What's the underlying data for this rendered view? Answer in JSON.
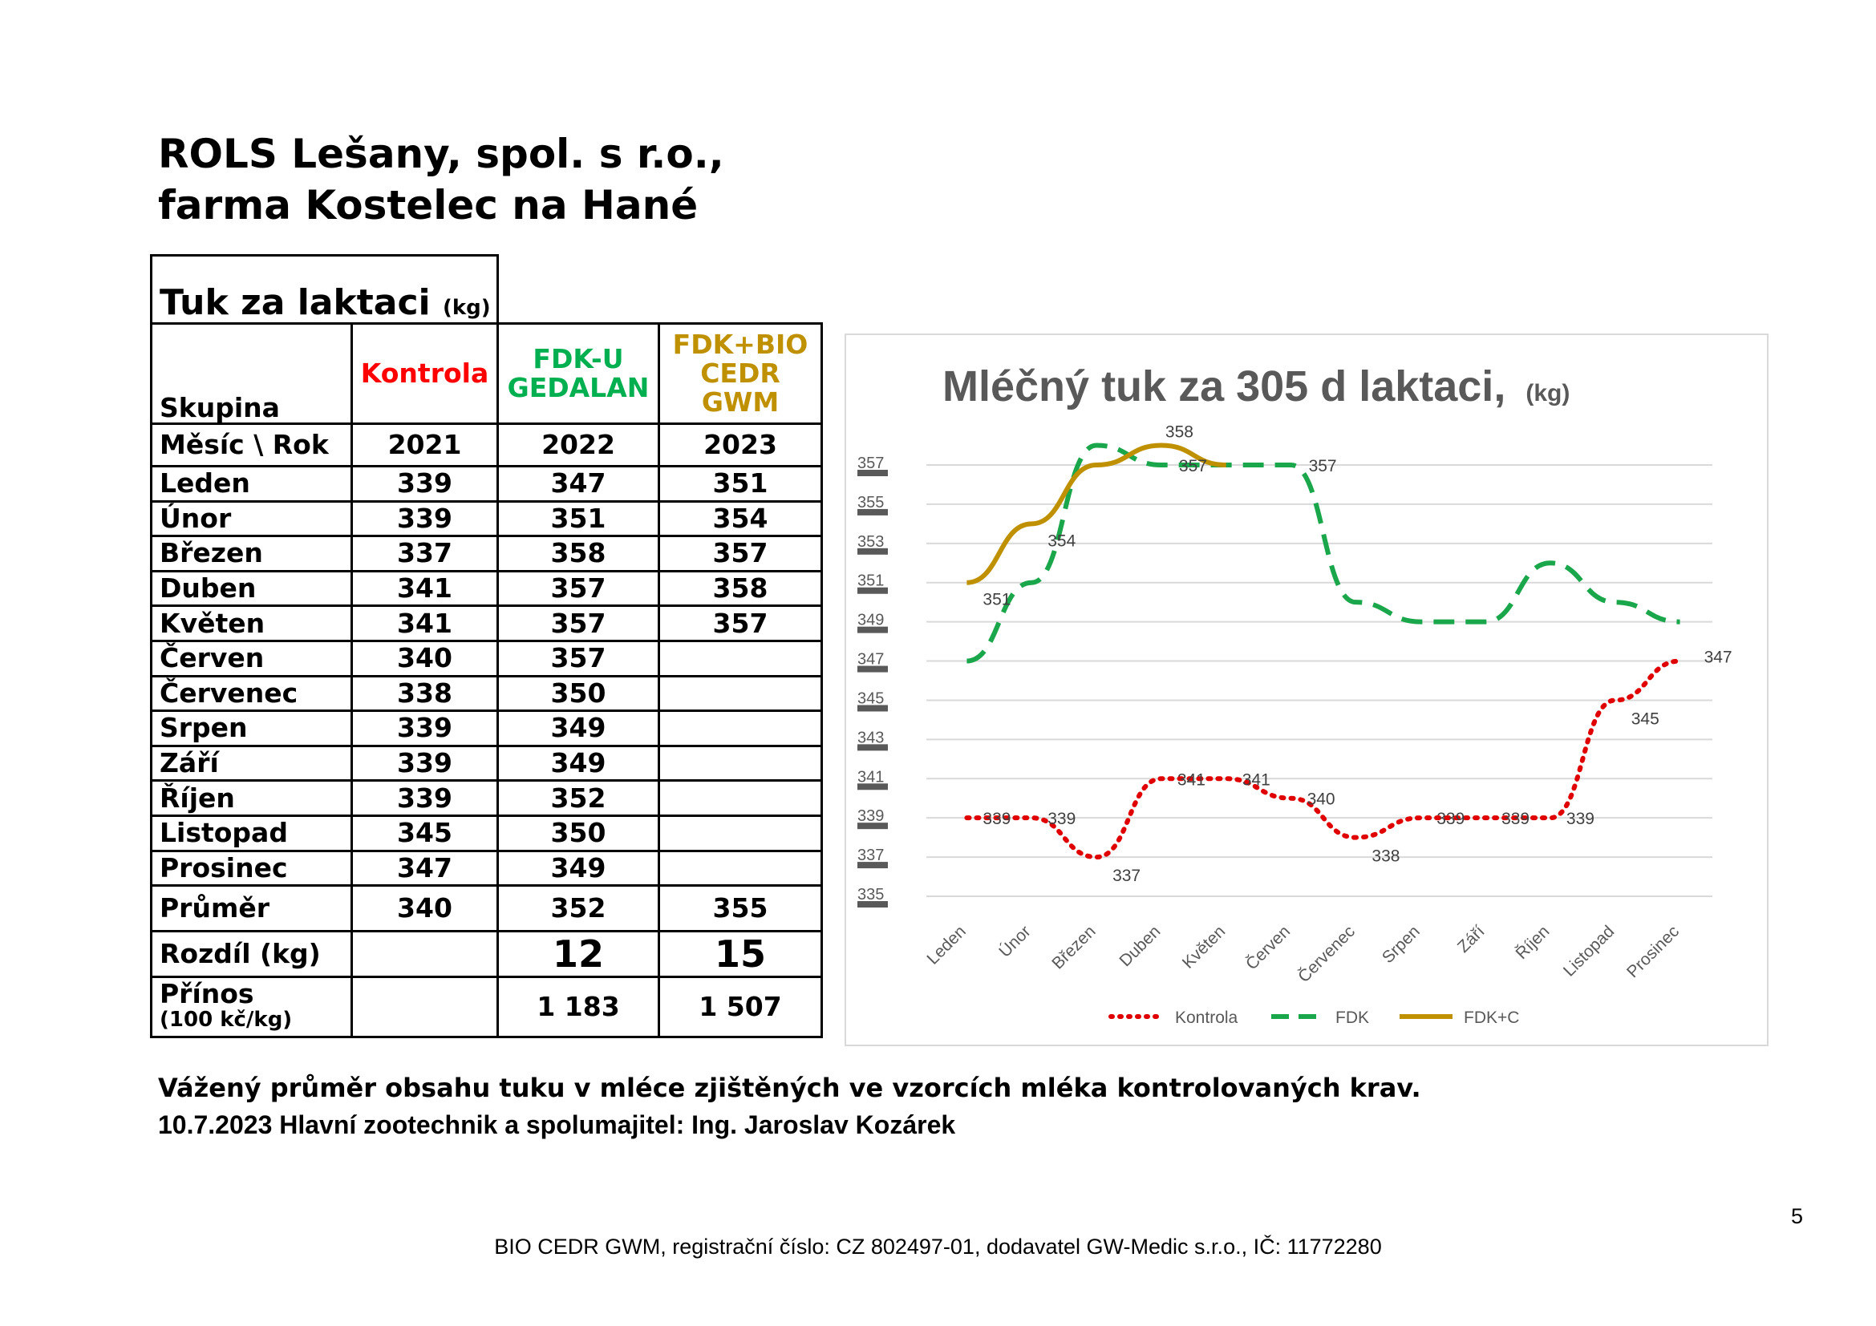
{
  "title_line1": "ROLS Lešany, spol. s r.o.,",
  "title_line2": "farma Kostelec na Hané",
  "table": {
    "title": "Tuk za laktaci",
    "title_unit": "(kg)",
    "group_label": "Skupina",
    "groups": [
      "Kontrola",
      "FDK-U GEDALAN",
      "FDK+BIO CEDR GWM"
    ],
    "group_colors": [
      "#ff0000",
      "#00b050",
      "#bf9000"
    ],
    "month_year_label": "Měsíc \\ Rok",
    "years": [
      "2021",
      "2022",
      "2023"
    ],
    "rows": [
      {
        "month": "Leden",
        "values": [
          "339",
          "347",
          "351"
        ]
      },
      {
        "month": "Únor",
        "values": [
          "339",
          "351",
          "354"
        ]
      },
      {
        "month": "Březen",
        "values": [
          "337",
          "358",
          "357"
        ]
      },
      {
        "month": "Duben",
        "values": [
          "341",
          "357",
          "358"
        ]
      },
      {
        "month": "Květen",
        "values": [
          "341",
          "357",
          "357"
        ]
      },
      {
        "month": "Červen",
        "values": [
          "340",
          "357",
          ""
        ]
      },
      {
        "month": "Červenec",
        "values": [
          "338",
          "350",
          ""
        ]
      },
      {
        "month": "Srpen",
        "values": [
          "339",
          "349",
          ""
        ]
      },
      {
        "month": "Září",
        "values": [
          "339",
          "349",
          ""
        ]
      },
      {
        "month": "Říjen",
        "values": [
          "339",
          "352",
          ""
        ]
      },
      {
        "month": "Listopad",
        "values": [
          "345",
          "350",
          ""
        ]
      },
      {
        "month": "Prosinec",
        "values": [
          "347",
          "349",
          ""
        ]
      }
    ],
    "average_label": "Průměr",
    "average": [
      "340",
      "352",
      "355"
    ],
    "difference_label": "Rozdíl (kg)",
    "difference": [
      "",
      "12",
      "15"
    ],
    "gain_label": "Přínos",
    "gain_unit": "(100 kč/kg)",
    "gain": [
      "",
      "1 183",
      "1 507"
    ]
  },
  "chart_data": {
    "type": "line",
    "title": "Mléčný tuk za 305 d laktaci,",
    "title_unit": "(kg)",
    "categories": [
      "Leden",
      "Únor",
      "Březen",
      "Duben",
      "Květen",
      "Červen",
      "Červenec",
      "Srpen",
      "Září",
      "Říjen",
      "Listopad",
      "Prosinec"
    ],
    "ylim": [
      335,
      357
    ],
    "yticks": [
      "357",
      "355",
      "353",
      "351",
      "349",
      "347",
      "345",
      "343",
      "341",
      "339",
      "337",
      "335"
    ],
    "grid": true,
    "legend_position": "bottom",
    "series": [
      {
        "name": "Kontrola",
        "color": "#e00000",
        "style": "dotted",
        "values": [
          339,
          339,
          337,
          341,
          341,
          340,
          338,
          339,
          339,
          339,
          345,
          347
        ],
        "labels": [
          "339",
          "339",
          "337",
          "341",
          "341",
          "340",
          "338",
          "339",
          "339",
          "339",
          "345",
          "347"
        ]
      },
      {
        "name": "FDK",
        "color": "#1aa64a",
        "style": "dashed",
        "values": [
          347,
          351,
          358,
          357,
          357,
          357,
          350,
          349,
          349,
          352,
          350,
          349
        ],
        "labels": [
          "",
          "",
          "",
          "357",
          "",
          "357",
          "",
          "",
          "",
          "",
          "",
          ""
        ]
      },
      {
        "name": "FDK+C",
        "color": "#bf9000",
        "style": "solid",
        "values": [
          351,
          354,
          357,
          358,
          357,
          null,
          null,
          null,
          null,
          null,
          null,
          null
        ],
        "labels": [
          "351",
          "354",
          "",
          "358",
          "",
          "",
          "",
          "",
          "",
          "",
          "",
          ""
        ]
      }
    ]
  },
  "caption": "Vážený průměr obsahu tuku v mléce zjištěných ve vzorcích mléka kontrolovaných krav.",
  "author": "10.7.2023  Hlavní zootechnik a spolumajitel: Ing. Jaroslav Kozárek",
  "page_number": "5",
  "footer": "BIO CEDR GWM, registrační číslo: CZ 802497-01, dodavatel GW-Medic s.r.o., IČ: 11772280"
}
